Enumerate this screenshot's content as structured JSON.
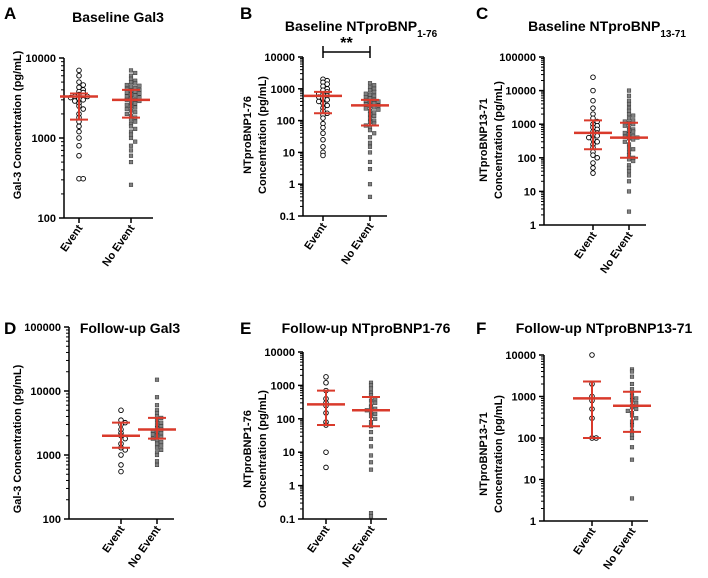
{
  "colors": {
    "summary": "#d93a2b",
    "axis": "#000000",
    "event_marker": "#ffffff",
    "noevent_marker": "#808080"
  },
  "chart_data": [
    {
      "panel": "A",
      "type": "scatter",
      "yscale": "log",
      "title": "Baseline Gal3",
      "title_main": "Baseline Gal3",
      "title_sub": "",
      "ylabel": [
        "Gal-3 Concentration (pg/mL)"
      ],
      "ylim": [
        100,
        10000
      ],
      "yticks": [
        100,
        1000,
        10000
      ],
      "yticklabels": [
        "100",
        "1000",
        "10000"
      ],
      "categories": [
        "Event",
        "No Event"
      ],
      "groups": [
        {
          "name": "Event",
          "marker": "open-circle",
          "median": 3300,
          "q1": 1700,
          "q3": 3600,
          "values": [
            7000,
            6000,
            5000,
            4600,
            4300,
            4000,
            3800,
            3700,
            3500,
            3400,
            3300,
            3300,
            3200,
            3100,
            3000,
            2900,
            2700,
            2500,
            2300,
            2000,
            1800,
            1600,
            1400,
            1200,
            1000,
            800,
            600,
            310,
            310
          ]
        },
        {
          "name": "No Event",
          "marker": "filled-square",
          "median": 3000,
          "q1": 1800,
          "q3": 4000,
          "values": [
            7000,
            6500,
            6000,
            5500,
            5200,
            5000,
            4800,
            4600,
            4500,
            4400,
            4200,
            4100,
            4000,
            3900,
            3800,
            3700,
            3600,
            3500,
            3400,
            3300,
            3200,
            3100,
            3000,
            3000,
            2900,
            2800,
            2700,
            2600,
            2500,
            2400,
            2300,
            2200,
            2100,
            2000,
            1900,
            1800,
            1700,
            1600,
            1500,
            1400,
            1300,
            1200,
            1100,
            1000,
            900,
            800,
            700,
            600,
            500,
            260
          ]
        }
      ]
    },
    {
      "panel": "B",
      "type": "scatter",
      "yscale": "log",
      "title": "Baseline NTproBNP1-76",
      "title_main": "Baseline NTproBNP",
      "title_sub": "1-76",
      "ylabel": [
        "NTproBNP1-76",
        "Concentration (pg/mL)"
      ],
      "ylim": [
        0.1,
        10000
      ],
      "yticks": [
        0.1,
        1,
        10,
        100,
        1000,
        10000
      ],
      "yticklabels": [
        "0.1",
        "1",
        "10",
        "100",
        "1000",
        "10000"
      ],
      "categories": [
        "Event",
        "No Event"
      ],
      "significance": "**",
      "groups": [
        {
          "name": "Event",
          "marker": "open-circle",
          "median": 600,
          "q1": 170,
          "q3": 800,
          "values": [
            2000,
            1800,
            1600,
            1400,
            1200,
            1000,
            900,
            800,
            700,
            650,
            600,
            550,
            500,
            450,
            400,
            350,
            300,
            250,
            200,
            170,
            150,
            120,
            80,
            60,
            40,
            25,
            15,
            10,
            8
          ]
        },
        {
          "name": "No Event",
          "marker": "filled-square",
          "median": 300,
          "q1": 70,
          "q3": 450,
          "values": [
            1500,
            1300,
            1100,
            1000,
            900,
            800,
            700,
            650,
            600,
            550,
            500,
            450,
            420,
            400,
            380,
            350,
            320,
            300,
            280,
            260,
            240,
            220,
            200,
            180,
            160,
            140,
            120,
            100,
            90,
            80,
            70,
            60,
            50,
            40,
            30,
            20,
            15,
            10,
            5,
            3,
            1,
            0.4
          ]
        }
      ]
    },
    {
      "panel": "C",
      "type": "scatter",
      "yscale": "log",
      "title": "Baseline NTproBNP13-71",
      "title_main": "Baseline NTproBNP",
      "title_sub": "13-71",
      "ylabel": [
        "NTproBNP13-71",
        "Concentration (pg/mL)"
      ],
      "ylim": [
        1,
        100000
      ],
      "yticks": [
        1,
        10,
        100,
        1000,
        10000,
        100000
      ],
      "yticklabels": [
        "1",
        "10",
        "100",
        "1000",
        "10000",
        "100000"
      ],
      "categories": [
        "Event",
        "No Event"
      ],
      "groups": [
        {
          "name": "Event",
          "marker": "open-circle",
          "median": 550,
          "q1": 180,
          "q3": 1300,
          "values": [
            25000,
            10000,
            5000,
            3000,
            2000,
            1500,
            1200,
            1000,
            900,
            800,
            700,
            600,
            550,
            500,
            450,
            400,
            350,
            300,
            250,
            200,
            150,
            120,
            100,
            70,
            50,
            35
          ]
        },
        {
          "name": "No Event",
          "marker": "filled-square",
          "median": 400,
          "q1": 100,
          "q3": 1100,
          "values": [
            10000,
            7000,
            5000,
            4000,
            3000,
            2500,
            2000,
            1800,
            1500,
            1300,
            1200,
            1100,
            1000,
            900,
            800,
            700,
            650,
            600,
            550,
            500,
            450,
            420,
            400,
            380,
            350,
            300,
            250,
            200,
            180,
            150,
            120,
            100,
            90,
            80,
            60,
            50,
            40,
            30,
            20,
            10,
            2.5
          ]
        }
      ]
    },
    {
      "panel": "D",
      "type": "scatter",
      "yscale": "log",
      "title": "Follow-up Gal3",
      "title_main": "Follow-up Gal3",
      "title_sub": "",
      "ylabel": [
        "Gal-3 Concentration (pg/mL)"
      ],
      "ylim": [
        100,
        100000
      ],
      "yticks": [
        100,
        1000,
        10000,
        100000
      ],
      "yticklabels": [
        "100",
        "1000",
        "10000",
        "100000"
      ],
      "categories": [
        "Event",
        "No Event"
      ],
      "groups": [
        {
          "name": "Event",
          "marker": "open-circle",
          "median": 2000,
          "q1": 1300,
          "q3": 3200,
          "values": [
            5000,
            3500,
            3200,
            3000,
            2500,
            2200,
            2000,
            1800,
            1500,
            1300,
            1200,
            1000,
            700,
            550
          ]
        },
        {
          "name": "No Event",
          "marker": "filled-square",
          "median": 2500,
          "q1": 1800,
          "q3": 3800,
          "values": [
            15000,
            8000,
            6000,
            5000,
            4500,
            4000,
            3800,
            3500,
            3200,
            3000,
            2800,
            2600,
            2500,
            2400,
            2300,
            2200,
            2100,
            2000,
            1900,
            1800,
            1700,
            1600,
            1500,
            1400,
            1300,
            1200,
            1100,
            1000,
            800,
            700
          ]
        }
      ]
    },
    {
      "panel": "E",
      "type": "scatter",
      "yscale": "log",
      "title": "Follow-up NTproBNP1-76",
      "title_main": "Follow-up NTproBNP1-76",
      "title_sub": "",
      "ylabel": [
        "NTproBNP1-76",
        "Concentration (pg/mL)"
      ],
      "ylim": [
        0.1,
        10000
      ],
      "yticks": [
        0.1,
        1,
        10,
        100,
        1000,
        10000
      ],
      "yticklabels": [
        "0.1",
        "1",
        "10",
        "100",
        "1000",
        "10000"
      ],
      "categories": [
        "Event",
        "No Event"
      ],
      "groups": [
        {
          "name": "Event",
          "marker": "open-circle",
          "median": 270,
          "q1": 65,
          "q3": 700,
          "values": [
            1800,
            1200,
            700,
            400,
            300,
            250,
            150,
            80,
            65,
            10,
            3.5
          ]
        },
        {
          "name": "No Event",
          "marker": "filled-square",
          "median": 180,
          "q1": 60,
          "q3": 450,
          "values": [
            1200,
            1000,
            800,
            600,
            500,
            400,
            350,
            300,
            250,
            220,
            200,
            180,
            160,
            140,
            120,
            100,
            80,
            60,
            40,
            25,
            15,
            8,
            5,
            3,
            0.15,
            0.12
          ]
        }
      ]
    },
    {
      "panel": "F",
      "type": "scatter",
      "yscale": "log",
      "title": "Follow-up NTproBNP13-71",
      "title_main": "Follow-up NTproBNP13-71",
      "title_sub": "",
      "ylabel": [
        "NTproBNP13-71",
        "Concentration (pg/mL)"
      ],
      "ylim": [
        1,
        10000
      ],
      "yticks": [
        1,
        10,
        100,
        1000,
        10000
      ],
      "yticklabels": [
        "1",
        "10",
        "100",
        "1000",
        "10000"
      ],
      "categories": [
        "Event",
        "No Event"
      ],
      "groups": [
        {
          "name": "Event",
          "marker": "open-circle",
          "median": 900,
          "q1": 100,
          "q3": 2300,
          "values": [
            10000,
            2000,
            1000,
            800,
            500,
            300,
            100,
            100
          ]
        },
        {
          "name": "No Event",
          "marker": "filled-square",
          "median": 600,
          "q1": 140,
          "q3": 1300,
          "values": [
            4500,
            4000,
            3000,
            2000,
            1500,
            1200,
            1000,
            900,
            800,
            700,
            600,
            550,
            500,
            450,
            400,
            350,
            300,
            250,
            200,
            150,
            120,
            100,
            60,
            30,
            3.5
          ]
        }
      ]
    }
  ]
}
